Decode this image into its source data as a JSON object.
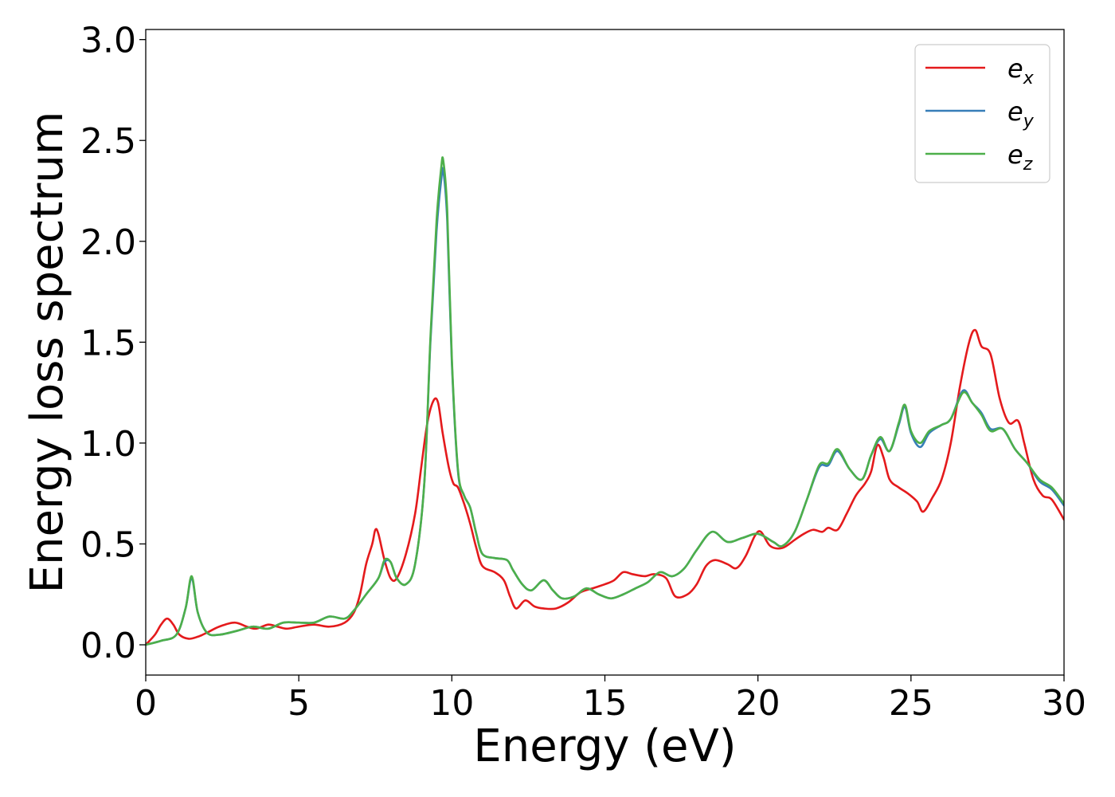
{
  "chart_data": {
    "type": "line",
    "title": "",
    "xlabel": "Energy (eV)",
    "ylabel": "Energy loss spectrum",
    "xlim": [
      0,
      30
    ],
    "ylim": [
      -0.15,
      3.05
    ],
    "xticks": [
      0,
      5,
      10,
      15,
      20,
      25,
      30
    ],
    "yticks": [
      0.0,
      0.5,
      1.0,
      1.5,
      2.0,
      2.5,
      3.0
    ],
    "xtick_labels": [
      "0",
      "5",
      "10",
      "15",
      "20",
      "25",
      "30"
    ],
    "ytick_labels": [
      "0.0",
      "0.5",
      "1.0",
      "1.5",
      "2.0",
      "2.5",
      "3.0"
    ],
    "grid": false,
    "legend_position": "top-right",
    "series": [
      {
        "name": "e_x",
        "legend_base": "e",
        "legend_sub": "x",
        "color": "#e41a1c",
        "points": [
          [
            0,
            0.0
          ],
          [
            0.3,
            0.05
          ],
          [
            0.5,
            0.1
          ],
          [
            0.7,
            0.13
          ],
          [
            0.9,
            0.1
          ],
          [
            1.1,
            0.05
          ],
          [
            1.4,
            0.03
          ],
          [
            1.7,
            0.04
          ],
          [
            2.0,
            0.06
          ],
          [
            2.4,
            0.09
          ],
          [
            2.9,
            0.11
          ],
          [
            3.3,
            0.09
          ],
          [
            3.6,
            0.08
          ],
          [
            4.0,
            0.1
          ],
          [
            4.3,
            0.09
          ],
          [
            4.6,
            0.08
          ],
          [
            5.0,
            0.09
          ],
          [
            5.5,
            0.1
          ],
          [
            6.0,
            0.09
          ],
          [
            6.5,
            0.11
          ],
          [
            6.8,
            0.16
          ],
          [
            7.0,
            0.25
          ],
          [
            7.2,
            0.4
          ],
          [
            7.4,
            0.5
          ],
          [
            7.5,
            0.57
          ],
          [
            7.6,
            0.55
          ],
          [
            7.8,
            0.42
          ],
          [
            8.0,
            0.33
          ],
          [
            8.2,
            0.33
          ],
          [
            8.5,
            0.45
          ],
          [
            8.8,
            0.65
          ],
          [
            9.0,
            0.88
          ],
          [
            9.2,
            1.1
          ],
          [
            9.4,
            1.21
          ],
          [
            9.55,
            1.2
          ],
          [
            9.7,
            1.05
          ],
          [
            9.9,
            0.88
          ],
          [
            10.05,
            0.8
          ],
          [
            10.2,
            0.78
          ],
          [
            10.4,
            0.7
          ],
          [
            10.6,
            0.6
          ],
          [
            10.8,
            0.48
          ],
          [
            11.0,
            0.39
          ],
          [
            11.4,
            0.36
          ],
          [
            11.7,
            0.32
          ],
          [
            11.9,
            0.24
          ],
          [
            12.1,
            0.18
          ],
          [
            12.4,
            0.22
          ],
          [
            12.7,
            0.19
          ],
          [
            13.0,
            0.18
          ],
          [
            13.4,
            0.18
          ],
          [
            13.8,
            0.21
          ],
          [
            14.2,
            0.26
          ],
          [
            14.6,
            0.28
          ],
          [
            15.0,
            0.3
          ],
          [
            15.3,
            0.32
          ],
          [
            15.6,
            0.36
          ],
          [
            15.9,
            0.35
          ],
          [
            16.3,
            0.34
          ],
          [
            16.6,
            0.35
          ],
          [
            17.0,
            0.33
          ],
          [
            17.3,
            0.24
          ],
          [
            17.7,
            0.25
          ],
          [
            18.0,
            0.3
          ],
          [
            18.3,
            0.39
          ],
          [
            18.6,
            0.42
          ],
          [
            19.0,
            0.4
          ],
          [
            19.3,
            0.38
          ],
          [
            19.6,
            0.44
          ],
          [
            19.9,
            0.54
          ],
          [
            20.1,
            0.56
          ],
          [
            20.4,
            0.49
          ],
          [
            20.8,
            0.48
          ],
          [
            21.2,
            0.52
          ],
          [
            21.5,
            0.55
          ],
          [
            21.8,
            0.57
          ],
          [
            22.1,
            0.56
          ],
          [
            22.3,
            0.58
          ],
          [
            22.6,
            0.57
          ],
          [
            22.9,
            0.65
          ],
          [
            23.2,
            0.74
          ],
          [
            23.5,
            0.8
          ],
          [
            23.7,
            0.86
          ],
          [
            23.9,
            0.99
          ],
          [
            24.1,
            0.93
          ],
          [
            24.3,
            0.82
          ],
          [
            24.6,
            0.78
          ],
          [
            24.9,
            0.75
          ],
          [
            25.2,
            0.71
          ],
          [
            25.4,
            0.66
          ],
          [
            25.7,
            0.73
          ],
          [
            26.0,
            0.82
          ],
          [
            26.3,
            1.0
          ],
          [
            26.6,
            1.28
          ],
          [
            26.9,
            1.5
          ],
          [
            27.1,
            1.56
          ],
          [
            27.3,
            1.48
          ],
          [
            27.6,
            1.44
          ],
          [
            27.9,
            1.22
          ],
          [
            28.2,
            1.1
          ],
          [
            28.5,
            1.11
          ],
          [
            28.7,
            1.0
          ],
          [
            29.0,
            0.82
          ],
          [
            29.3,
            0.74
          ],
          [
            29.6,
            0.72
          ],
          [
            30.0,
            0.62
          ]
        ]
      },
      {
        "name": "e_y",
        "legend_base": "e",
        "legend_sub": "y",
        "color": "#377eb8",
        "points": [
          [
            0,
            0.0
          ],
          [
            0.5,
            0.02
          ],
          [
            1.0,
            0.05
          ],
          [
            1.3,
            0.18
          ],
          [
            1.5,
            0.33
          ],
          [
            1.7,
            0.16
          ],
          [
            2.0,
            0.06
          ],
          [
            2.4,
            0.05
          ],
          [
            3.0,
            0.07
          ],
          [
            3.5,
            0.09
          ],
          [
            4.0,
            0.08
          ],
          [
            4.5,
            0.11
          ],
          [
            5.0,
            0.11
          ],
          [
            5.5,
            0.11
          ],
          [
            6.0,
            0.14
          ],
          [
            6.5,
            0.13
          ],
          [
            6.8,
            0.17
          ],
          [
            7.2,
            0.25
          ],
          [
            7.6,
            0.33
          ],
          [
            7.8,
            0.41
          ],
          [
            8.0,
            0.41
          ],
          [
            8.2,
            0.33
          ],
          [
            8.5,
            0.3
          ],
          [
            8.8,
            0.4
          ],
          [
            9.1,
            0.8
          ],
          [
            9.3,
            1.5
          ],
          [
            9.5,
            2.05
          ],
          [
            9.65,
            2.3
          ],
          [
            9.72,
            2.35
          ],
          [
            9.85,
            2.1
          ],
          [
            10.0,
            1.4
          ],
          [
            10.2,
            0.86
          ],
          [
            10.4,
            0.74
          ],
          [
            10.6,
            0.68
          ],
          [
            10.8,
            0.55
          ],
          [
            11.0,
            0.45
          ],
          [
            11.4,
            0.43
          ],
          [
            11.8,
            0.42
          ],
          [
            12.0,
            0.37
          ],
          [
            12.3,
            0.3
          ],
          [
            12.6,
            0.27
          ],
          [
            13.0,
            0.32
          ],
          [
            13.3,
            0.27
          ],
          [
            13.6,
            0.23
          ],
          [
            14.0,
            0.24
          ],
          [
            14.4,
            0.28
          ],
          [
            14.8,
            0.25
          ],
          [
            15.2,
            0.23
          ],
          [
            15.6,
            0.25
          ],
          [
            16.0,
            0.28
          ],
          [
            16.4,
            0.31
          ],
          [
            16.8,
            0.36
          ],
          [
            17.2,
            0.34
          ],
          [
            17.6,
            0.38
          ],
          [
            18.0,
            0.47
          ],
          [
            18.5,
            0.56
          ],
          [
            19.0,
            0.51
          ],
          [
            19.5,
            0.53
          ],
          [
            20.0,
            0.55
          ],
          [
            20.5,
            0.51
          ],
          [
            20.8,
            0.49
          ],
          [
            21.2,
            0.56
          ],
          [
            21.6,
            0.72
          ],
          [
            22.0,
            0.88
          ],
          [
            22.3,
            0.89
          ],
          [
            22.6,
            0.96
          ],
          [
            23.0,
            0.87
          ],
          [
            23.4,
            0.82
          ],
          [
            23.7,
            0.94
          ],
          [
            24.0,
            1.02
          ],
          [
            24.3,
            0.96
          ],
          [
            24.6,
            1.09
          ],
          [
            24.8,
            1.18
          ],
          [
            25.0,
            1.05
          ],
          [
            25.3,
            0.98
          ],
          [
            25.6,
            1.05
          ],
          [
            26.0,
            1.09
          ],
          [
            26.3,
            1.12
          ],
          [
            26.7,
            1.26
          ],
          [
            27.0,
            1.2
          ],
          [
            27.3,
            1.15
          ],
          [
            27.6,
            1.07
          ],
          [
            28.0,
            1.07
          ],
          [
            28.4,
            0.97
          ],
          [
            28.8,
            0.9
          ],
          [
            29.2,
            0.81
          ],
          [
            29.6,
            0.77
          ],
          [
            30.0,
            0.69
          ]
        ]
      },
      {
        "name": "e_z",
        "legend_base": "e",
        "legend_sub": "z",
        "color": "#4daf4a",
        "points": [
          [
            0,
            0.0
          ],
          [
            0.5,
            0.02
          ],
          [
            1.0,
            0.05
          ],
          [
            1.3,
            0.18
          ],
          [
            1.5,
            0.34
          ],
          [
            1.7,
            0.16
          ],
          [
            2.0,
            0.06
          ],
          [
            2.4,
            0.05
          ],
          [
            3.0,
            0.07
          ],
          [
            3.5,
            0.09
          ],
          [
            4.0,
            0.08
          ],
          [
            4.5,
            0.11
          ],
          [
            5.0,
            0.11
          ],
          [
            5.5,
            0.11
          ],
          [
            6.0,
            0.14
          ],
          [
            6.5,
            0.13
          ],
          [
            6.8,
            0.17
          ],
          [
            7.2,
            0.25
          ],
          [
            7.6,
            0.33
          ],
          [
            7.8,
            0.42
          ],
          [
            8.0,
            0.41
          ],
          [
            8.2,
            0.33
          ],
          [
            8.5,
            0.3
          ],
          [
            8.8,
            0.4
          ],
          [
            9.1,
            0.8
          ],
          [
            9.3,
            1.52
          ],
          [
            9.5,
            2.1
          ],
          [
            9.65,
            2.36
          ],
          [
            9.72,
            2.4
          ],
          [
            9.85,
            2.15
          ],
          [
            10.0,
            1.42
          ],
          [
            10.2,
            0.87
          ],
          [
            10.4,
            0.74
          ],
          [
            10.6,
            0.68
          ],
          [
            10.8,
            0.55
          ],
          [
            11.0,
            0.45
          ],
          [
            11.4,
            0.43
          ],
          [
            11.8,
            0.42
          ],
          [
            12.0,
            0.37
          ],
          [
            12.3,
            0.3
          ],
          [
            12.6,
            0.27
          ],
          [
            13.0,
            0.32
          ],
          [
            13.3,
            0.27
          ],
          [
            13.6,
            0.23
          ],
          [
            14.0,
            0.24
          ],
          [
            14.4,
            0.28
          ],
          [
            14.8,
            0.25
          ],
          [
            15.2,
            0.23
          ],
          [
            15.6,
            0.25
          ],
          [
            16.0,
            0.28
          ],
          [
            16.4,
            0.31
          ],
          [
            16.8,
            0.36
          ],
          [
            17.2,
            0.34
          ],
          [
            17.6,
            0.38
          ],
          [
            18.0,
            0.47
          ],
          [
            18.5,
            0.56
          ],
          [
            19.0,
            0.51
          ],
          [
            19.5,
            0.53
          ],
          [
            20.0,
            0.55
          ],
          [
            20.5,
            0.51
          ],
          [
            20.8,
            0.49
          ],
          [
            21.2,
            0.56
          ],
          [
            21.6,
            0.72
          ],
          [
            22.0,
            0.89
          ],
          [
            22.3,
            0.9
          ],
          [
            22.6,
            0.97
          ],
          [
            23.0,
            0.87
          ],
          [
            23.4,
            0.82
          ],
          [
            23.7,
            0.94
          ],
          [
            24.0,
            1.03
          ],
          [
            24.3,
            0.96
          ],
          [
            24.6,
            1.1
          ],
          [
            24.8,
            1.19
          ],
          [
            25.0,
            1.06
          ],
          [
            25.3,
            1.0
          ],
          [
            25.6,
            1.06
          ],
          [
            26.0,
            1.09
          ],
          [
            26.3,
            1.12
          ],
          [
            26.7,
            1.25
          ],
          [
            27.0,
            1.2
          ],
          [
            27.3,
            1.14
          ],
          [
            27.6,
            1.06
          ],
          [
            28.0,
            1.07
          ],
          [
            28.4,
            0.97
          ],
          [
            28.8,
            0.9
          ],
          [
            29.2,
            0.82
          ],
          [
            29.6,
            0.78
          ],
          [
            30.0,
            0.7
          ]
        ]
      }
    ]
  }
}
